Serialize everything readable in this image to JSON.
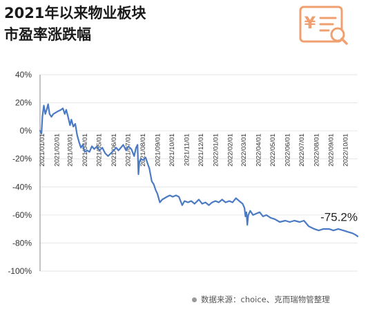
{
  "title_line1": "2021年以来物业板块",
  "title_line2": "市盈率涨跌幅",
  "logo_icon": "yuan-document-search-icon",
  "source": "数据来源：choice、克而瑞物管整理",
  "colors": {
    "line": "#4a7ac4",
    "grid": "#e6e6e6",
    "logo": "#f0a070",
    "axis": "#888888"
  },
  "chart_data": {
    "type": "line",
    "title": "2021年以来物业板块市盈率涨跌幅",
    "xlabel": "",
    "ylabel": "",
    "ylim": [
      -100,
      40
    ],
    "yticks": [
      40,
      20,
      0,
      -20,
      -40,
      -60,
      -80,
      -100
    ],
    "ytick_labels": [
      "40%",
      "20%",
      "0%",
      "-20%",
      "-40%",
      "-60%",
      "-80%",
      "-100%"
    ],
    "xlim": [
      "2021/01/01",
      "2022/10/31"
    ],
    "xtick_labels": [
      "2021/01/01",
      "2021/02/01",
      "2021/03/01",
      "2021/04/01",
      "2021/05/01",
      "2021/06/01",
      "2021/07/01",
      "2021/08/01",
      "2021/09/01",
      "2021/10/01",
      "2021/11/01",
      "2021/12/01",
      "2022/01/01",
      "2022/02/01",
      "2022/03/01",
      "2022/04/01",
      "2022/05/01",
      "2022/06/01",
      "2022/07/01",
      "2022/08/01",
      "2022/09/01",
      "2022/10/01"
    ],
    "grid": true,
    "series": [
      {
        "color": "#4a7ac4",
        "points": [
          [
            "2021/01/01",
            0
          ],
          [
            "2021/01/04",
            -2
          ],
          [
            "2021/01/06",
            10
          ],
          [
            "2021/01/09",
            18
          ],
          [
            "2021/01/12",
            12
          ],
          [
            "2021/01/15",
            15
          ],
          [
            "2021/01/18",
            19
          ],
          [
            "2021/01/21",
            12
          ],
          [
            "2021/01/25",
            10
          ],
          [
            "2021/01/29",
            12
          ],
          [
            "2021/02/03",
            13
          ],
          [
            "2021/02/08",
            14
          ],
          [
            "2021/02/14",
            15
          ],
          [
            "2021/02/18",
            16
          ],
          [
            "2021/02/22",
            12
          ],
          [
            "2021/02/25",
            15
          ],
          [
            "2021/03/01",
            10
          ],
          [
            "2021/03/05",
            4
          ],
          [
            "2021/03/08",
            8
          ],
          [
            "2021/03/12",
            3
          ],
          [
            "2021/03/16",
            5
          ],
          [
            "2021/03/20",
            -3
          ],
          [
            "2021/03/24",
            -8
          ],
          [
            "2021/03/28",
            -12
          ],
          [
            "2021/04/01",
            -10
          ],
          [
            "2021/04/05",
            -15
          ],
          [
            "2021/04/10",
            -14
          ],
          [
            "2021/04/15",
            -15
          ],
          [
            "2021/04/20",
            -11
          ],
          [
            "2021/04/25",
            -13
          ],
          [
            "2021/05/01",
            -11
          ],
          [
            "2021/05/06",
            -14
          ],
          [
            "2021/05/12",
            -12
          ],
          [
            "2021/05/18",
            -16
          ],
          [
            "2021/05/24",
            -18
          ],
          [
            "2021/05/30",
            -16
          ],
          [
            "2021/06/05",
            -14
          ],
          [
            "2021/06/10",
            -12
          ],
          [
            "2021/06/15",
            -14
          ],
          [
            "2021/06/20",
            -12
          ],
          [
            "2021/06/25",
            -10
          ],
          [
            "2021/07/01",
            -14
          ],
          [
            "2021/07/06",
            -11
          ],
          [
            "2021/07/12",
            -13
          ],
          [
            "2021/07/18",
            -18
          ],
          [
            "2021/07/22",
            -12
          ],
          [
            "2021/07/25",
            -10
          ],
          [
            "2021/07/27",
            -31
          ],
          [
            "2021/07/29",
            -22
          ],
          [
            "2021/08/01",
            -20
          ],
          [
            "2021/08/06",
            -21
          ],
          [
            "2021/08/11",
            -19
          ],
          [
            "2021/08/15",
            -23
          ],
          [
            "2021/08/19",
            -27
          ],
          [
            "2021/08/24",
            -36
          ],
          [
            "2021/08/28",
            -38
          ],
          [
            "2021/09/01",
            -42
          ],
          [
            "2021/09/05",
            -45
          ],
          [
            "2021/09/10",
            -51
          ],
          [
            "2021/09/15",
            -49
          ],
          [
            "2021/09/20",
            -48
          ],
          [
            "2021/09/25",
            -47
          ],
          [
            "2021/10/01",
            -46
          ],
          [
            "2021/10/07",
            -47
          ],
          [
            "2021/10/14",
            -46
          ],
          [
            "2021/10/20",
            -47
          ],
          [
            "2021/10/27",
            -53
          ],
          [
            "2021/11/01",
            -50
          ],
          [
            "2021/11/08",
            -51
          ],
          [
            "2021/11/15",
            -50
          ],
          [
            "2021/11/22",
            -52
          ],
          [
            "2021/12/01",
            -49
          ],
          [
            "2021/12/08",
            -52
          ],
          [
            "2021/12/15",
            -51
          ],
          [
            "2021/12/22",
            -53
          ],
          [
            "2021/12/29",
            -51
          ],
          [
            "2022/01/05",
            -50
          ],
          [
            "2022/01/12",
            -51
          ],
          [
            "2022/01/19",
            -49
          ],
          [
            "2022/01/26",
            -51
          ],
          [
            "2022/02/03",
            -50
          ],
          [
            "2022/02/10",
            -51
          ],
          [
            "2022/02/17",
            -48
          ],
          [
            "2022/02/24",
            -50
          ],
          [
            "2022/03/03",
            -52
          ],
          [
            "2022/03/07",
            -55
          ],
          [
            "2022/03/09",
            -61
          ],
          [
            "2022/03/11",
            -58
          ],
          [
            "2022/03/13",
            -67
          ],
          [
            "2022/03/15",
            -60
          ],
          [
            "2022/03/19",
            -57
          ],
          [
            "2022/03/25",
            -60
          ],
          [
            "2022/04/01",
            -59
          ],
          [
            "2022/04/08",
            -58
          ],
          [
            "2022/04/15",
            -61
          ],
          [
            "2022/04/22",
            -60
          ],
          [
            "2022/05/01",
            -62
          ],
          [
            "2022/05/10",
            -63
          ],
          [
            "2022/05/20",
            -65
          ],
          [
            "2022/06/01",
            -64
          ],
          [
            "2022/06/10",
            -65
          ],
          [
            "2022/06/20",
            -64
          ],
          [
            "2022/07/01",
            -65
          ],
          [
            "2022/07/10",
            -64
          ],
          [
            "2022/07/20",
            -68
          ],
          [
            "2022/08/01",
            -70
          ],
          [
            "2022/08/10",
            -71
          ],
          [
            "2022/08/20",
            -70
          ],
          [
            "2022/09/01",
            -70
          ],
          [
            "2022/09/10",
            -71
          ],
          [
            "2022/09/20",
            -70
          ],
          [
            "2022/10/01",
            -71
          ],
          [
            "2022/10/10",
            -72
          ],
          [
            "2022/10/20",
            -73
          ],
          [
            "2022/10/26",
            -74
          ],
          [
            "2022/10/31",
            -75.2
          ]
        ]
      }
    ],
    "annotations": [
      {
        "text": "-75.2%",
        "x": "2022/10/31",
        "y": -75.2
      }
    ]
  }
}
